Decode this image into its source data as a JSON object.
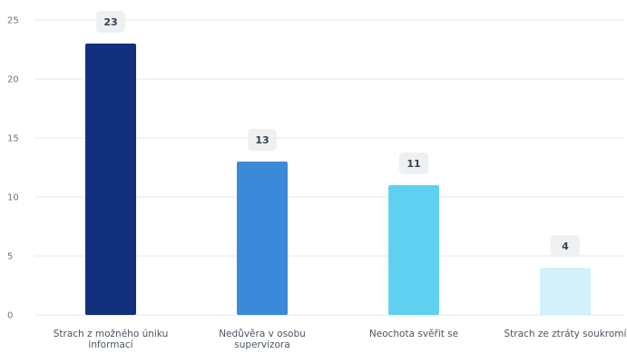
{
  "chart_data": {
    "type": "bar",
    "title": "",
    "xlabel": "",
    "ylabel": "",
    "categories": [
      [
        "Strach z možného úniku",
        "informací"
      ],
      [
        "Nedůvěra v osobu",
        "supervizora"
      ],
      [
        "Neochota svěřit se"
      ],
      [
        "Strach ze ztráty soukromí"
      ]
    ],
    "values": [
      23,
      13,
      11,
      4
    ],
    "bar_colors": [
      "#12307e",
      "#3a8ad9",
      "#60d0f0",
      "#d2f1fb"
    ],
    "ylim": [
      0,
      25
    ],
    "yticks": [
      0,
      5,
      10,
      15,
      20,
      25
    ],
    "grid": true,
    "legend": "none",
    "label_badge_color": "#eef0f2"
  }
}
